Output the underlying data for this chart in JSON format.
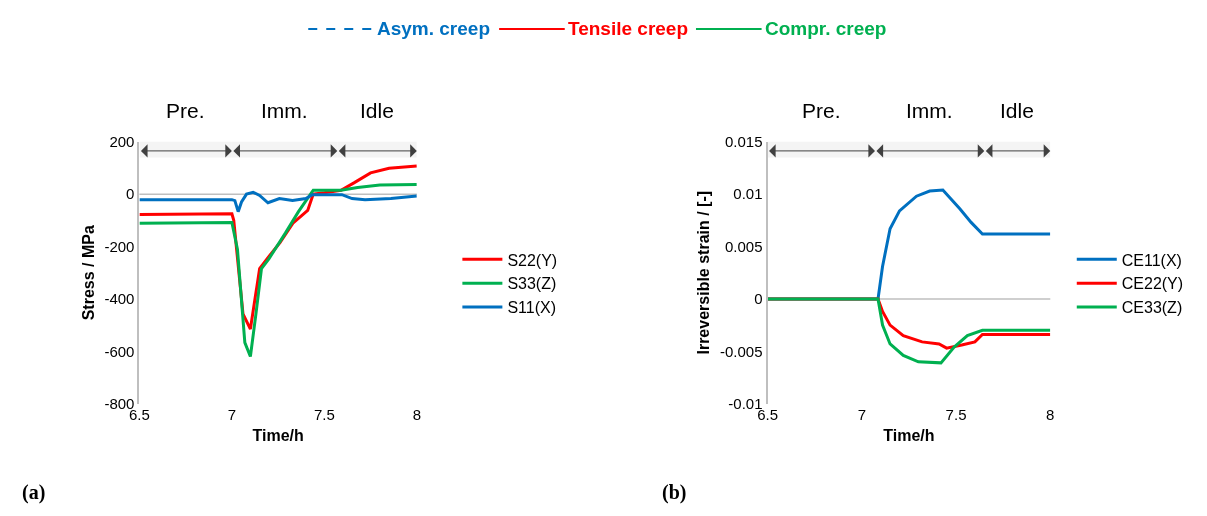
{
  "chart_data": [
    {
      "type": "line",
      "xlabel": "Time/h",
      "ylabel": "Stress / MPa",
      "xlim": [
        6.5,
        8
      ],
      "xticks": [
        6.5,
        7,
        7.5,
        8
      ],
      "ylim": [
        -800,
        200
      ],
      "yticks": [
        -800,
        -600,
        -400,
        -200,
        0,
        200
      ],
      "legend": "right",
      "grid": false,
      "ref_lines": [
        {
          "axis": "y",
          "value": 0,
          "color": "#bfbfbf"
        }
      ],
      "bands": [
        {
          "axis": "x",
          "from": 6.5,
          "to": 7.0,
          "label": "Pre."
        },
        {
          "axis": "x",
          "from": 7.0,
          "to": 7.57,
          "label": "Imm."
        },
        {
          "axis": "x",
          "from": 7.57,
          "to": 8.0,
          "label": "Idle"
        }
      ],
      "annotations": [
        "(a)"
      ],
      "series": [
        {
          "name": "S22(Y)",
          "color": "#ff0000",
          "x": [
            6.5,
            7.0,
            7.01,
            7.06,
            7.1,
            7.15,
            7.19,
            7.26,
            7.33,
            7.41,
            7.44,
            7.5,
            7.59,
            7.66,
            7.75,
            7.85,
            8.0
          ],
          "values": [
            -78,
            -75,
            -100,
            -457,
            -515,
            -284,
            -247,
            -185,
            -111,
            -62,
            0,
            5,
            15,
            43,
            81,
            99,
            107
          ]
        },
        {
          "name": "S33(Z)",
          "color": "#00b050",
          "x": [
            6.5,
            7.0,
            7.03,
            7.07,
            7.1,
            7.13,
            7.16,
            7.2,
            7.29,
            7.36,
            7.44,
            7.59,
            7.68,
            7.8,
            8.0
          ],
          "values": [
            -111,
            -108,
            -210,
            -567,
            -620,
            -457,
            -284,
            -247,
            -148,
            -67,
            15,
            15,
            25,
            35,
            37
          ]
        },
        {
          "name": "S11(X)",
          "color": "#0070c0",
          "x": [
            6.5,
            7.0,
            7.016,
            7.034,
            7.052,
            7.079,
            7.115,
            7.15,
            7.195,
            7.257,
            7.328,
            7.4,
            7.435,
            7.595,
            7.65,
            7.72,
            7.86,
            8.0
          ],
          "values": [
            -21,
            -21,
            -25,
            -67,
            -30,
            0,
            7,
            -5,
            -33,
            -17,
            -24,
            -17,
            -2,
            -2,
            -17,
            -21,
            -17,
            -7
          ]
        },
        {
          "name": "Asym. creep",
          "color": "#0070c0",
          "line_style": "dashed"
        },
        {
          "name": "Tensile creep",
          "color": "#ff0000",
          "line_style": "solid"
        },
        {
          "name": "Compr. creep",
          "color": "#00b050",
          "line_style": "solid"
        }
      ]
    },
    {
      "type": "line",
      "xlabel": "Time/h",
      "ylabel": "Irreversible strain / [-]",
      "xlim": [
        6.5,
        8
      ],
      "xticks": [
        6.5,
        7,
        7.5,
        8
      ],
      "ylim": [
        -0.01,
        0.015
      ],
      "yticks": [
        -0.01,
        -0.005,
        0,
        0.005,
        0.01,
        0.015
      ],
      "legend": "right",
      "grid": false,
      "ref_lines": [
        {
          "axis": "y",
          "value": 0,
          "color": "#bfbfbf"
        }
      ],
      "bands": [
        {
          "axis": "x",
          "from": 6.5,
          "to": 7.07,
          "label": "Pre."
        },
        {
          "axis": "x",
          "from": 7.07,
          "to": 7.65,
          "label": "Imm."
        },
        {
          "axis": "x",
          "from": 7.65,
          "to": 8.0,
          "label": "Idle"
        }
      ],
      "annotations": [
        "(b)"
      ],
      "series": [
        {
          "name": "CE11(X)",
          "color": "#0070c0",
          "x": [
            6.5,
            7.086,
            7.11,
            7.15,
            7.2,
            7.29,
            7.36,
            7.43,
            7.52,
            7.58,
            7.64,
            8.0
          ],
          "values": [
            0,
            0,
            0.0031,
            0.0067,
            0.0084,
            0.0098,
            0.0103,
            0.0104,
            0.0086,
            0.0073,
            0.0062,
            0.0062
          ]
        },
        {
          "name": "CE22(Y)",
          "color": "#ff0000",
          "x": [
            6.5,
            7.086,
            7.11,
            7.15,
            7.22,
            7.32,
            7.41,
            7.45,
            7.53,
            7.6,
            7.64,
            8.0
          ],
          "values": [
            0,
            0,
            -0.0012,
            -0.0025,
            -0.0035,
            -0.0041,
            -0.0043,
            -0.0047,
            -0.0044,
            -0.0041,
            -0.0034,
            -0.0034
          ]
        },
        {
          "name": "CE33(Z)",
          "color": "#00b050",
          "x": [
            6.5,
            7.086,
            7.11,
            7.15,
            7.22,
            7.3,
            7.42,
            7.49,
            7.56,
            7.64,
            8.0
          ],
          "values": [
            0,
            0,
            -0.0025,
            -0.0043,
            -0.0054,
            -0.006,
            -0.0061,
            -0.0046,
            -0.0035,
            -0.003,
            -0.003
          ]
        }
      ]
    }
  ]
}
